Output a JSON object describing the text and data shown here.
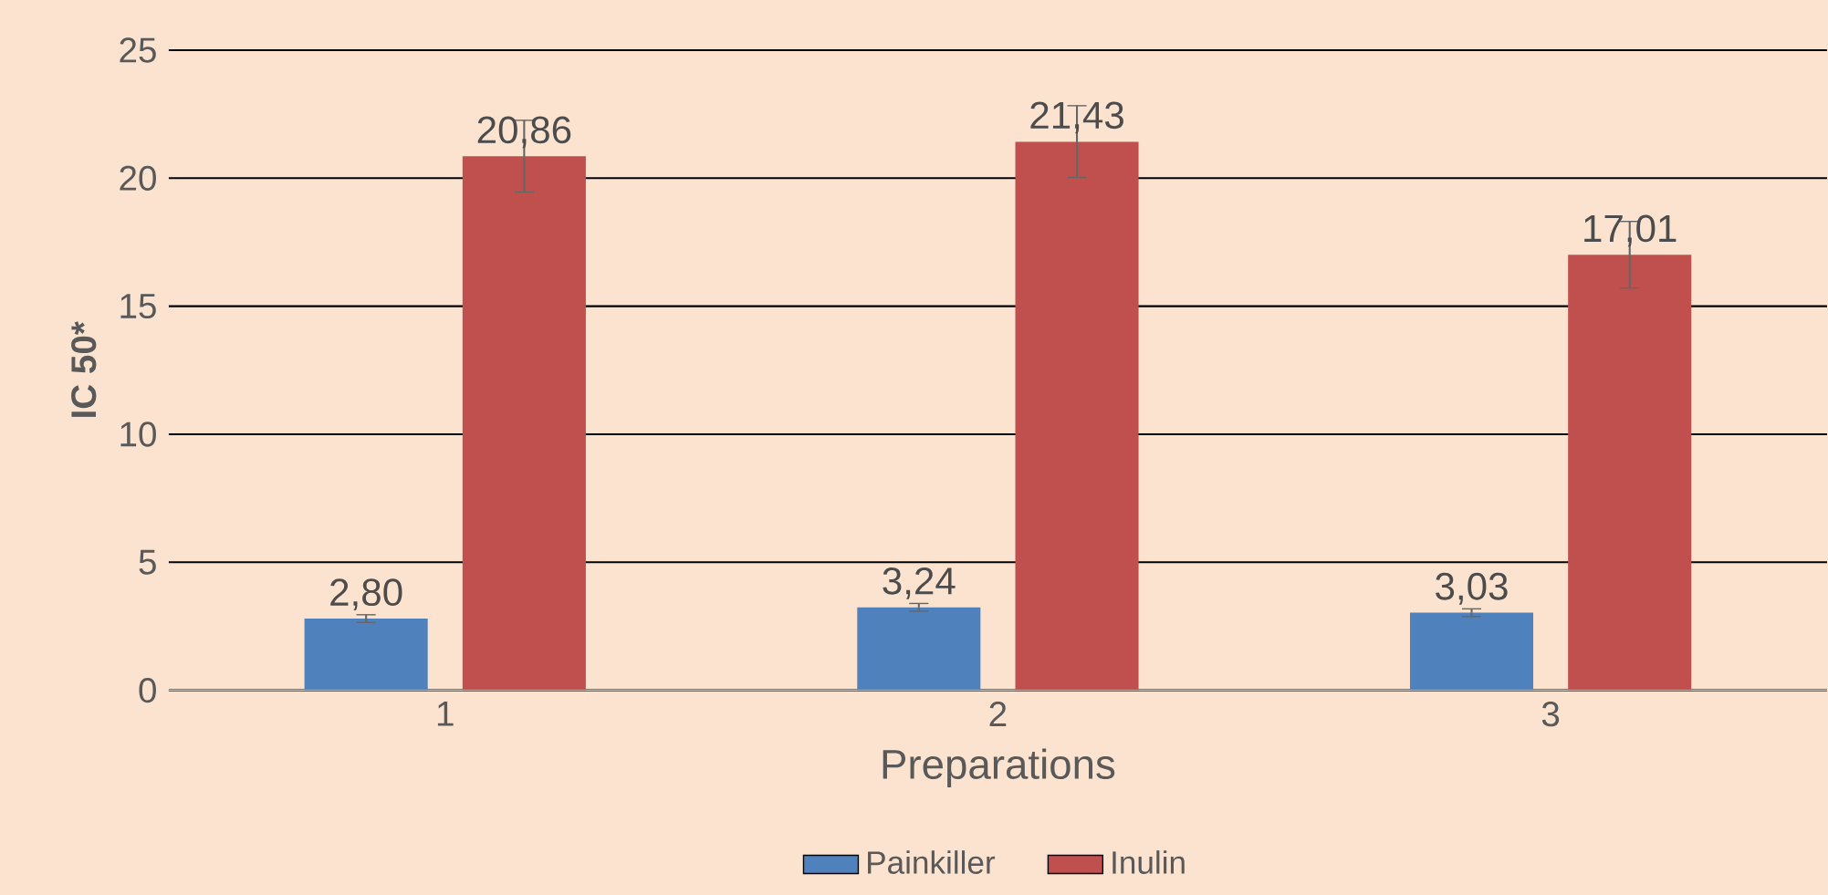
{
  "chart_data": {
    "type": "bar",
    "xlabel": "Preparations",
    "ylabel": "IC 50*",
    "categories": [
      "1",
      "2",
      "3"
    ],
    "series": [
      {
        "name": "Painkiller",
        "color": "#4f81bd",
        "values": [
          2.8,
          3.24,
          3.03
        ],
        "errors": [
          0.15,
          0.15,
          0.15
        ],
        "value_labels": [
          "2,80",
          "3,24",
          "3,03"
        ]
      },
      {
        "name": "Inulin",
        "color": "#c0504d",
        "values": [
          20.86,
          21.43,
          17.01
        ],
        "errors": [
          1.4,
          1.4,
          1.3
        ],
        "value_labels": [
          "20,86",
          "21,43",
          "17,01"
        ]
      }
    ],
    "ylim": [
      0,
      25
    ],
    "yticks": [
      0,
      5,
      10,
      15,
      20,
      25
    ],
    "grid": "y",
    "legend": "bottom"
  }
}
